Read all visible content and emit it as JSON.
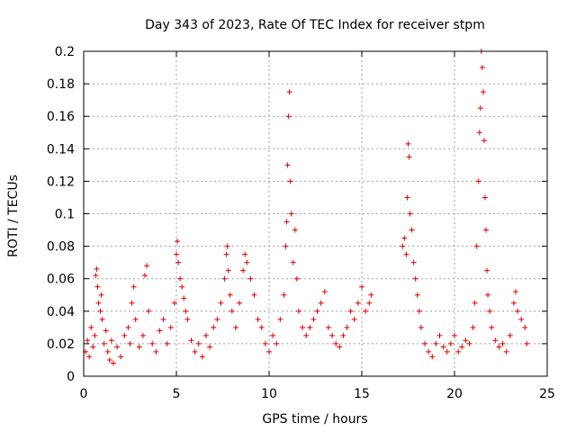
{
  "chart_data": {
    "type": "scatter",
    "title": "Day 343 of 2023, Rate Of TEC Index for receiver stpm",
    "xlabel": "GPS time / hours",
    "ylabel": "ROTI / TECUs",
    "xlim": [
      0,
      25
    ],
    "ylim": [
      0,
      0.2
    ],
    "xticks": [
      0,
      5,
      10,
      15,
      20,
      25
    ],
    "yticks": [
      0,
      0.02,
      0.04,
      0.06,
      0.08,
      0.1,
      0.12,
      0.14,
      0.16,
      0.18,
      0.2
    ],
    "grid": true,
    "marker": "+",
    "color": "#e00000",
    "series": [
      {
        "values": [
          [
            0.1,
            0.015
          ],
          [
            0.2,
            0.022
          ],
          [
            0.3,
            0.012
          ],
          [
            0.4,
            0.03
          ],
          [
            0.5,
            0.018
          ],
          [
            0.6,
            0.025
          ],
          [
            0.65,
            0.062
          ],
          [
            0.7,
            0.066
          ],
          [
            0.75,
            0.055
          ],
          [
            0.8,
            0.045
          ],
          [
            0.9,
            0.04
          ],
          [
            0.95,
            0.05
          ],
          [
            1.0,
            0.035
          ],
          [
            1.1,
            0.02
          ],
          [
            1.2,
            0.028
          ],
          [
            1.3,
            0.015
          ],
          [
            1.4,
            0.01
          ],
          [
            1.5,
            0.022
          ],
          [
            1.6,
            0.008
          ],
          [
            1.8,
            0.018
          ],
          [
            2.0,
            0.012
          ],
          [
            2.2,
            0.025
          ],
          [
            2.4,
            0.03
          ],
          [
            2.5,
            0.02
          ],
          [
            2.6,
            0.045
          ],
          [
            2.7,
            0.055
          ],
          [
            2.8,
            0.035
          ],
          [
            3.0,
            0.018
          ],
          [
            3.2,
            0.025
          ],
          [
            3.3,
            0.062
          ],
          [
            3.4,
            0.068
          ],
          [
            3.5,
            0.04
          ],
          [
            3.7,
            0.02
          ],
          [
            3.9,
            0.015
          ],
          [
            4.1,
            0.028
          ],
          [
            4.3,
            0.035
          ],
          [
            4.5,
            0.02
          ],
          [
            4.7,
            0.03
          ],
          [
            4.9,
            0.045
          ],
          [
            5.0,
            0.075
          ],
          [
            5.05,
            0.083
          ],
          [
            5.1,
            0.07
          ],
          [
            5.2,
            0.06
          ],
          [
            5.3,
            0.055
          ],
          [
            5.4,
            0.048
          ],
          [
            5.5,
            0.04
          ],
          [
            5.6,
            0.035
          ],
          [
            5.8,
            0.022
          ],
          [
            6.0,
            0.015
          ],
          [
            6.2,
            0.02
          ],
          [
            6.4,
            0.012
          ],
          [
            6.6,
            0.025
          ],
          [
            6.8,
            0.018
          ],
          [
            7.0,
            0.03
          ],
          [
            7.2,
            0.035
          ],
          [
            7.4,
            0.045
          ],
          [
            7.6,
            0.06
          ],
          [
            7.7,
            0.075
          ],
          [
            7.75,
            0.08
          ],
          [
            7.8,
            0.065
          ],
          [
            7.9,
            0.05
          ],
          [
            8.0,
            0.04
          ],
          [
            8.2,
            0.03
          ],
          [
            8.4,
            0.045
          ],
          [
            8.6,
            0.065
          ],
          [
            8.7,
            0.075
          ],
          [
            8.8,
            0.07
          ],
          [
            9.0,
            0.06
          ],
          [
            9.2,
            0.05
          ],
          [
            9.4,
            0.035
          ],
          [
            9.6,
            0.03
          ],
          [
            9.8,
            0.02
          ],
          [
            10.0,
            0.015
          ],
          [
            10.2,
            0.025
          ],
          [
            10.4,
            0.02
          ],
          [
            10.6,
            0.035
          ],
          [
            10.8,
            0.05
          ],
          [
            10.9,
            0.08
          ],
          [
            10.95,
            0.095
          ],
          [
            11.0,
            0.13
          ],
          [
            11.05,
            0.16
          ],
          [
            11.1,
            0.175
          ],
          [
            11.15,
            0.12
          ],
          [
            11.2,
            0.1
          ],
          [
            11.3,
            0.07
          ],
          [
            11.4,
            0.09
          ],
          [
            11.5,
            0.06
          ],
          [
            11.6,
            0.04
          ],
          [
            11.8,
            0.03
          ],
          [
            12.0,
            0.025
          ],
          [
            12.2,
            0.03
          ],
          [
            12.4,
            0.035
          ],
          [
            12.6,
            0.04
          ],
          [
            12.8,
            0.045
          ],
          [
            13.0,
            0.052
          ],
          [
            13.2,
            0.03
          ],
          [
            13.4,
            0.025
          ],
          [
            13.6,
            0.02
          ],
          [
            13.8,
            0.018
          ],
          [
            14.0,
            0.025
          ],
          [
            14.2,
            0.03
          ],
          [
            14.4,
            0.04
          ],
          [
            14.6,
            0.035
          ],
          [
            14.8,
            0.045
          ],
          [
            15.0,
            0.055
          ],
          [
            15.2,
            0.04
          ],
          [
            15.4,
            0.045
          ],
          [
            15.5,
            0.05
          ],
          [
            17.2,
            0.08
          ],
          [
            17.3,
            0.085
          ],
          [
            17.4,
            0.075
          ],
          [
            17.45,
            0.11
          ],
          [
            17.5,
            0.143
          ],
          [
            17.55,
            0.135
          ],
          [
            17.6,
            0.1
          ],
          [
            17.7,
            0.09
          ],
          [
            17.8,
            0.07
          ],
          [
            17.9,
            0.06
          ],
          [
            18.0,
            0.05
          ],
          [
            18.1,
            0.04
          ],
          [
            18.2,
            0.03
          ],
          [
            18.4,
            0.02
          ],
          [
            18.6,
            0.015
          ],
          [
            18.8,
            0.012
          ],
          [
            19.0,
            0.02
          ],
          [
            19.2,
            0.025
          ],
          [
            19.4,
            0.018
          ],
          [
            19.6,
            0.015
          ],
          [
            19.8,
            0.02
          ],
          [
            20.0,
            0.025
          ],
          [
            20.2,
            0.015
          ],
          [
            20.4,
            0.018
          ],
          [
            20.6,
            0.022
          ],
          [
            20.8,
            0.02
          ],
          [
            21.0,
            0.03
          ],
          [
            21.1,
            0.045
          ],
          [
            21.2,
            0.08
          ],
          [
            21.3,
            0.12
          ],
          [
            21.35,
            0.15
          ],
          [
            21.4,
            0.165
          ],
          [
            21.45,
            0.2
          ],
          [
            21.5,
            0.19
          ],
          [
            21.55,
            0.175
          ],
          [
            21.6,
            0.145
          ],
          [
            21.65,
            0.11
          ],
          [
            21.7,
            0.09
          ],
          [
            21.75,
            0.065
          ],
          [
            21.8,
            0.05
          ],
          [
            21.9,
            0.04
          ],
          [
            22.0,
            0.03
          ],
          [
            22.2,
            0.022
          ],
          [
            22.4,
            0.018
          ],
          [
            22.6,
            0.02
          ],
          [
            22.8,
            0.015
          ],
          [
            23.0,
            0.025
          ],
          [
            23.2,
            0.045
          ],
          [
            23.3,
            0.052
          ],
          [
            23.4,
            0.04
          ],
          [
            23.6,
            0.035
          ],
          [
            23.8,
            0.03
          ],
          [
            23.9,
            0.02
          ]
        ]
      }
    ]
  }
}
